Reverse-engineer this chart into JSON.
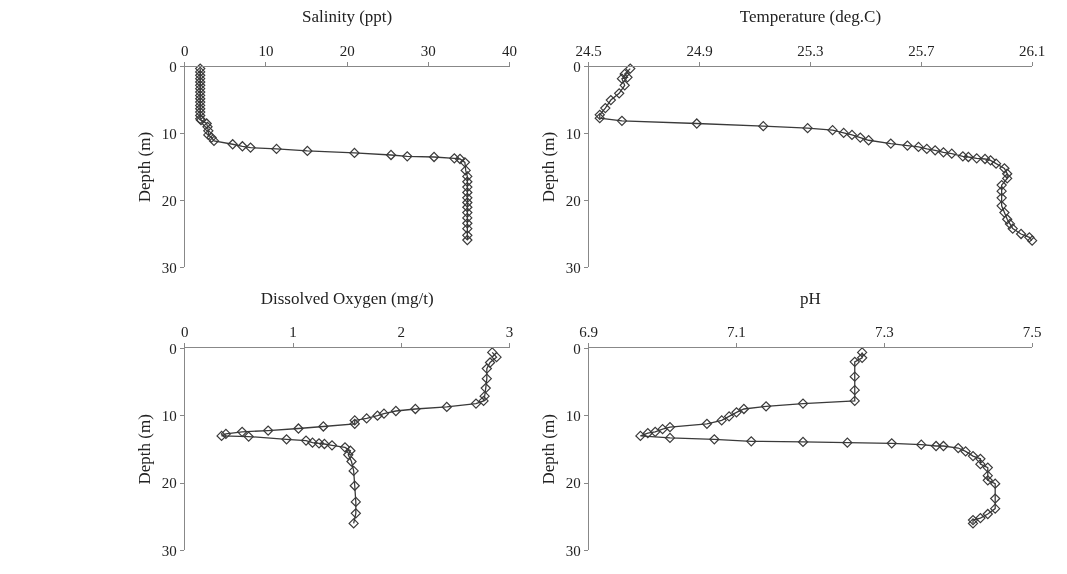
{
  "chart_data": [
    {
      "type": "line",
      "xlabel": "Salinity (ppt)",
      "ylabel": "Depth (m)",
      "color": "#3a3a3a",
      "marker": "diamond",
      "line_style": "solid",
      "x": [
        1.9,
        1.9,
        1.9,
        1.9,
        1.9,
        1.9,
        1.9,
        1.9,
        1.9,
        1.9,
        1.9,
        1.9,
        1.9,
        1.9,
        1.9,
        1.9,
        2.0,
        2.7,
        2.8,
        2.9,
        2.9,
        3.3,
        3.6,
        5.9,
        7.1,
        8.1,
        11.3,
        15.1,
        20.9,
        25.4,
        27.4,
        30.7,
        33.2,
        33.9,
        34.5,
        34.6,
        34.8,
        34.8,
        34.8,
        34.8,
        34.8,
        34.8,
        34.8,
        34.8,
        34.8,
        34.8,
        34.8,
        34.8,
        34.8
      ],
      "values": [
        0.3,
        0.8,
        1.3,
        1.8,
        2.3,
        2.8,
        3.3,
        3.8,
        4.3,
        4.8,
        5.3,
        5.8,
        6.3,
        6.8,
        7.3,
        7.8,
        8.0,
        8.5,
        9.0,
        9.6,
        10.2,
        10.6,
        11.1,
        11.6,
        11.9,
        12.1,
        12.3,
        12.6,
        12.9,
        13.2,
        13.4,
        13.5,
        13.7,
        13.8,
        14.3,
        15.5,
        16.4,
        17.2,
        18.0,
        18.8,
        19.6,
        20.3,
        21.0,
        21.8,
        22.6,
        23.4,
        24.2,
        25.2,
        25.9
      ],
      "xlim": [
        0,
        40
      ],
      "xticks": [
        0,
        10,
        20,
        30,
        40
      ],
      "ylim": [
        30,
        0
      ],
      "yticks": [
        0,
        10,
        20,
        30
      ]
    },
    {
      "type": "line",
      "xlabel": "Temperature (deg.C)",
      "ylabel": "Depth (m)",
      "color": "#3a3a3a",
      "marker": "diamond",
      "line_style": "solid",
      "x": [
        24.65,
        24.63,
        24.64,
        24.62,
        24.63,
        24.61,
        24.58,
        24.56,
        24.54,
        24.54,
        24.62,
        24.89,
        25.13,
        25.29,
        25.38,
        25.42,
        25.45,
        25.48,
        25.51,
        25.59,
        25.65,
        25.69,
        25.72,
        25.75,
        25.78,
        25.81,
        25.85,
        25.87,
        25.9,
        25.93,
        25.95,
        25.97,
        26.0,
        26.01,
        26.01,
        25.99,
        25.99,
        25.99,
        25.99,
        26.0,
        26.01,
        26.02,
        26.03,
        26.06,
        26.09,
        26.1
      ],
      "values": [
        0.3,
        1.1,
        1.6,
        1.8,
        2.8,
        4.0,
        5.0,
        6.2,
        7.2,
        7.7,
        8.1,
        8.5,
        8.9,
        9.2,
        9.5,
        9.9,
        10.2,
        10.6,
        11.0,
        11.5,
        11.8,
        12.0,
        12.3,
        12.5,
        12.8,
        13.0,
        13.4,
        13.5,
        13.7,
        13.8,
        14.0,
        14.5,
        15.2,
        16.0,
        16.7,
        17.7,
        18.6,
        19.6,
        20.8,
        21.8,
        22.8,
        23.5,
        24.2,
        25.0,
        25.5,
        26.0
      ],
      "xlim": [
        24.5,
        26.1
      ],
      "xticks": [
        24.5,
        24.9,
        25.3,
        25.7,
        26.1
      ],
      "ylim": [
        30,
        0
      ],
      "yticks": [
        0,
        10,
        20,
        30
      ]
    },
    {
      "type": "line",
      "xlabel": "Dissolved Oxygen (mg/t)",
      "ylabel": "Depth (m)",
      "color": "#3a3a3a",
      "marker": "diamond",
      "line_style": "solid",
      "x": [
        2.84,
        2.88,
        2.82,
        2.79,
        2.79,
        2.78,
        2.77,
        2.76,
        2.69,
        2.42,
        2.13,
        1.95,
        1.84,
        1.78,
        1.68,
        1.57,
        1.57,
        1.28,
        1.05,
        0.77,
        0.53,
        0.38,
        0.34,
        0.59,
        0.94,
        1.12,
        1.18,
        1.24,
        1.29,
        1.36,
        1.48,
        1.53,
        1.51,
        1.54,
        1.56,
        1.57,
        1.58,
        1.58,
        1.56
      ],
      "values": [
        0.6,
        1.3,
        2.1,
        3.0,
        4.5,
        5.9,
        7.1,
        7.8,
        8.2,
        8.7,
        9.0,
        9.3,
        9.7,
        10.0,
        10.4,
        10.7,
        11.2,
        11.6,
        11.9,
        12.2,
        12.4,
        12.7,
        13.0,
        13.1,
        13.5,
        13.7,
        14.0,
        14.1,
        14.2,
        14.4,
        14.7,
        15.2,
        15.8,
        16.8,
        18.2,
        20.4,
        22.8,
        24.5,
        26.0
      ],
      "xlim": [
        0,
        3
      ],
      "xticks": [
        0,
        1,
        2,
        3
      ],
      "ylim": [
        30,
        0
      ],
      "yticks": [
        0,
        10,
        20,
        30
      ]
    },
    {
      "type": "line",
      "xlabel": "pH",
      "ylabel": "Depth (m)",
      "color": "#3a3a3a",
      "marker": "diamond",
      "line_style": "solid",
      "x": [
        7.27,
        7.27,
        7.26,
        7.26,
        7.26,
        7.26,
        7.19,
        7.14,
        7.11,
        7.1,
        7.09,
        7.08,
        7.06,
        7.01,
        7.0,
        6.99,
        6.98,
        6.97,
        7.01,
        7.07,
        7.12,
        7.19,
        7.25,
        7.31,
        7.35,
        7.37,
        7.38,
        7.4,
        7.41,
        7.42,
        7.43,
        7.43,
        7.44,
        7.44,
        7.44,
        7.45,
        7.45,
        7.45,
        7.44,
        7.43,
        7.42,
        7.42
      ],
      "values": [
        0.6,
        1.4,
        2.0,
        4.2,
        6.2,
        7.8,
        8.2,
        8.6,
        9.0,
        9.5,
        10.1,
        10.7,
        11.2,
        11.7,
        12.0,
        12.4,
        12.6,
        13.0,
        13.3,
        13.5,
        13.8,
        13.9,
        14.0,
        14.1,
        14.3,
        14.5,
        14.5,
        14.8,
        15.3,
        16.0,
        16.4,
        17.2,
        17.7,
        18.9,
        19.6,
        20.1,
        22.3,
        23.8,
        24.6,
        25.2,
        25.5,
        26.0
      ],
      "xlim": [
        6.9,
        7.5
      ],
      "xticks": [
        6.9,
        7.1,
        7.3,
        7.5
      ],
      "ylim": [
        30,
        0
      ],
      "yticks": [
        0,
        10,
        20,
        30
      ]
    }
  ]
}
